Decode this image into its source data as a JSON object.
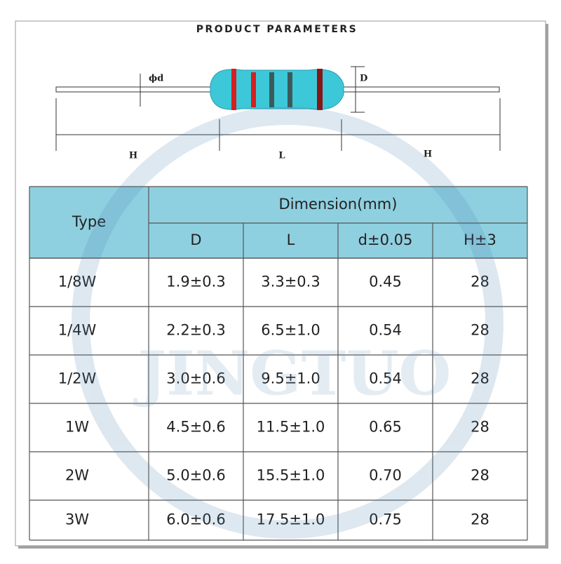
{
  "header": {
    "title": "PRODUCT PARAMETERS"
  },
  "diagram": {
    "lead_diameter": "ϕd",
    "body_diameter": "D",
    "left_lead": "H",
    "body_length": "L",
    "right_lead": "H"
  },
  "watermark": "JINGTUO",
  "table": {
    "type_header": "Type",
    "group_header": "Dimension(mm)",
    "columns": [
      "D",
      "L",
      "d±0.05",
      "H±3"
    ],
    "rows": [
      [
        "1/8W",
        "1.9±0.3",
        "3.3±0.3",
        "0.45",
        "28"
      ],
      [
        "1/4W",
        "2.2±0.3",
        "6.5±1.0",
        "0.54",
        "28"
      ],
      [
        "1/2W",
        "3.0±0.6",
        "9.5±1.0",
        "0.54",
        "28"
      ],
      [
        "1W",
        "4.5±0.6",
        "11.5±1.0",
        "0.65",
        "28"
      ],
      [
        "2W",
        "5.0±0.6",
        "15.5±1.0",
        "0.70",
        "28"
      ],
      [
        "3W",
        "6.0±0.6",
        "17.5±1.0",
        "0.75",
        "28"
      ]
    ]
  }
}
